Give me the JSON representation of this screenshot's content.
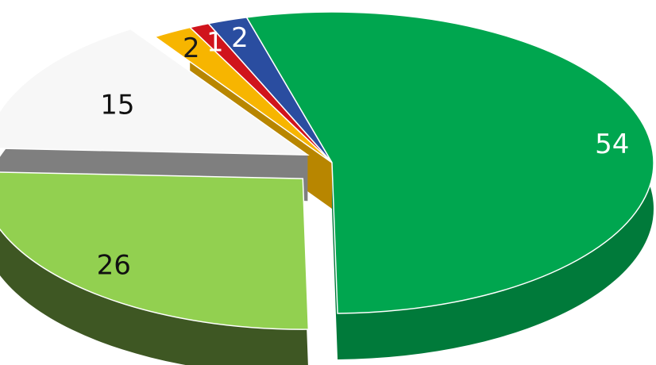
{
  "chart_data": {
    "type": "pie",
    "style": "3d-exploded",
    "title": "",
    "slices": [
      {
        "label": "54",
        "value": 54,
        "color": "#00a64f",
        "side_color": "#007a3a",
        "text_color": "#ffffff"
      },
      {
        "label": "2",
        "value": 2,
        "color": "#2a4da0",
        "side_color": "#172a5c",
        "text_color": "#ffffff"
      },
      {
        "label": "1",
        "value": 1,
        "color": "#d0141c",
        "side_color": "#7c0b10",
        "text_color": "#ffffff"
      },
      {
        "label": "2",
        "value": 2,
        "color": "#f7b500",
        "side_color": "#b88600",
        "text_color": "#1a1a1a"
      },
      {
        "label": "15",
        "value": 15,
        "color": "#f7f7f7",
        "side_color": "#7f7f7f",
        "text_color": "#111111"
      },
      {
        "label": "26",
        "value": 26,
        "color": "#92d050",
        "side_color": "#3e5723",
        "text_color": "#111111"
      }
    ]
  }
}
